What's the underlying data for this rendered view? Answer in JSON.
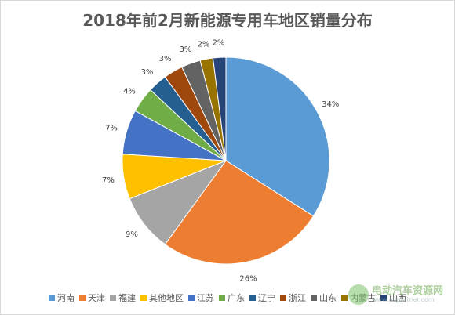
{
  "chart_data": {
    "type": "pie",
    "title": "2018年前2月新能源专用车地区销量分布",
    "slices": [
      {
        "label": "河南",
        "value": 34,
        "display": "34%",
        "color": "#5b9bd5"
      },
      {
        "label": "天津",
        "value": 26,
        "display": "26%",
        "color": "#ed7d31"
      },
      {
        "label": "福建",
        "value": 9,
        "display": "9%",
        "color": "#a5a5a5"
      },
      {
        "label": "其他地区",
        "value": 7,
        "display": "7%",
        "color": "#ffc000"
      },
      {
        "label": "江苏",
        "value": 7,
        "display": "7%",
        "color": "#4472c4"
      },
      {
        "label": "广东",
        "value": 4,
        "display": "4%",
        "color": "#70ad47"
      },
      {
        "label": "辽宁",
        "value": 3,
        "display": "3%",
        "color": "#255e91"
      },
      {
        "label": "浙江",
        "value": 3,
        "display": "3%",
        "color": "#9e480e"
      },
      {
        "label": "山东",
        "value": 3,
        "display": "3%",
        "color": "#636363"
      },
      {
        "label": "内蒙古",
        "value": 2,
        "display": "2%",
        "color": "#997300"
      },
      {
        "label": "山西",
        "value": 2,
        "display": "2%",
        "color": "#264478"
      }
    ],
    "legend_position": "bottom",
    "start_angle": "top, clockwise"
  },
  "watermark": {
    "main": "电动汽车资源网",
    "sub": "www.evpartner.com"
  }
}
